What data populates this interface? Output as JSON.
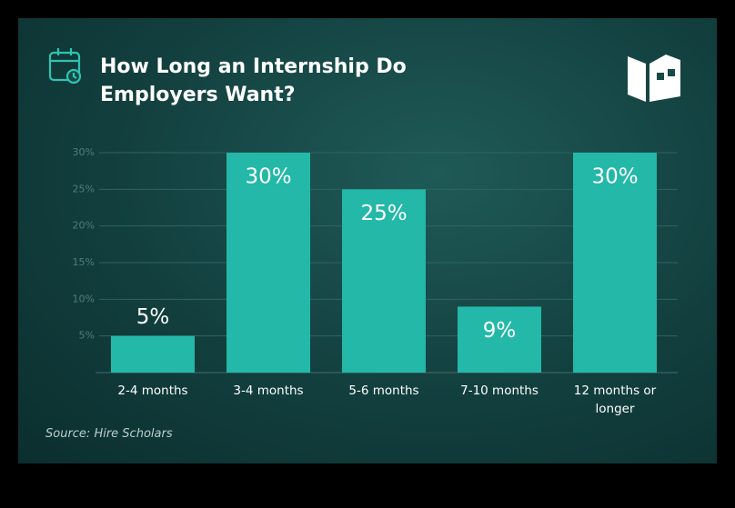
{
  "chart_data": {
    "type": "bar",
    "title": "How Long an Internship Do Employers Want?",
    "categories": [
      "2-4 months",
      "3-4 months",
      "5-6 months",
      "7-10 months",
      "12 months or longer"
    ],
    "values": [
      5,
      30,
      25,
      9,
      30
    ],
    "value_labels": [
      "5%",
      "30%",
      "25%",
      "9%",
      "30%"
    ],
    "color": "#23b8a8",
    "ylim": [
      0,
      30
    ],
    "yticks": [
      {
        "value": 5,
        "label": "5%"
      },
      {
        "value": 10,
        "label": "10%"
      },
      {
        "value": 15,
        "label": "15%"
      },
      {
        "value": 20,
        "label": "20%"
      },
      {
        "value": 25,
        "label": "25%"
      },
      {
        "value": 30,
        "label": "30%"
      }
    ],
    "grid": true,
    "source": "Source: Hire Scholars"
  }
}
